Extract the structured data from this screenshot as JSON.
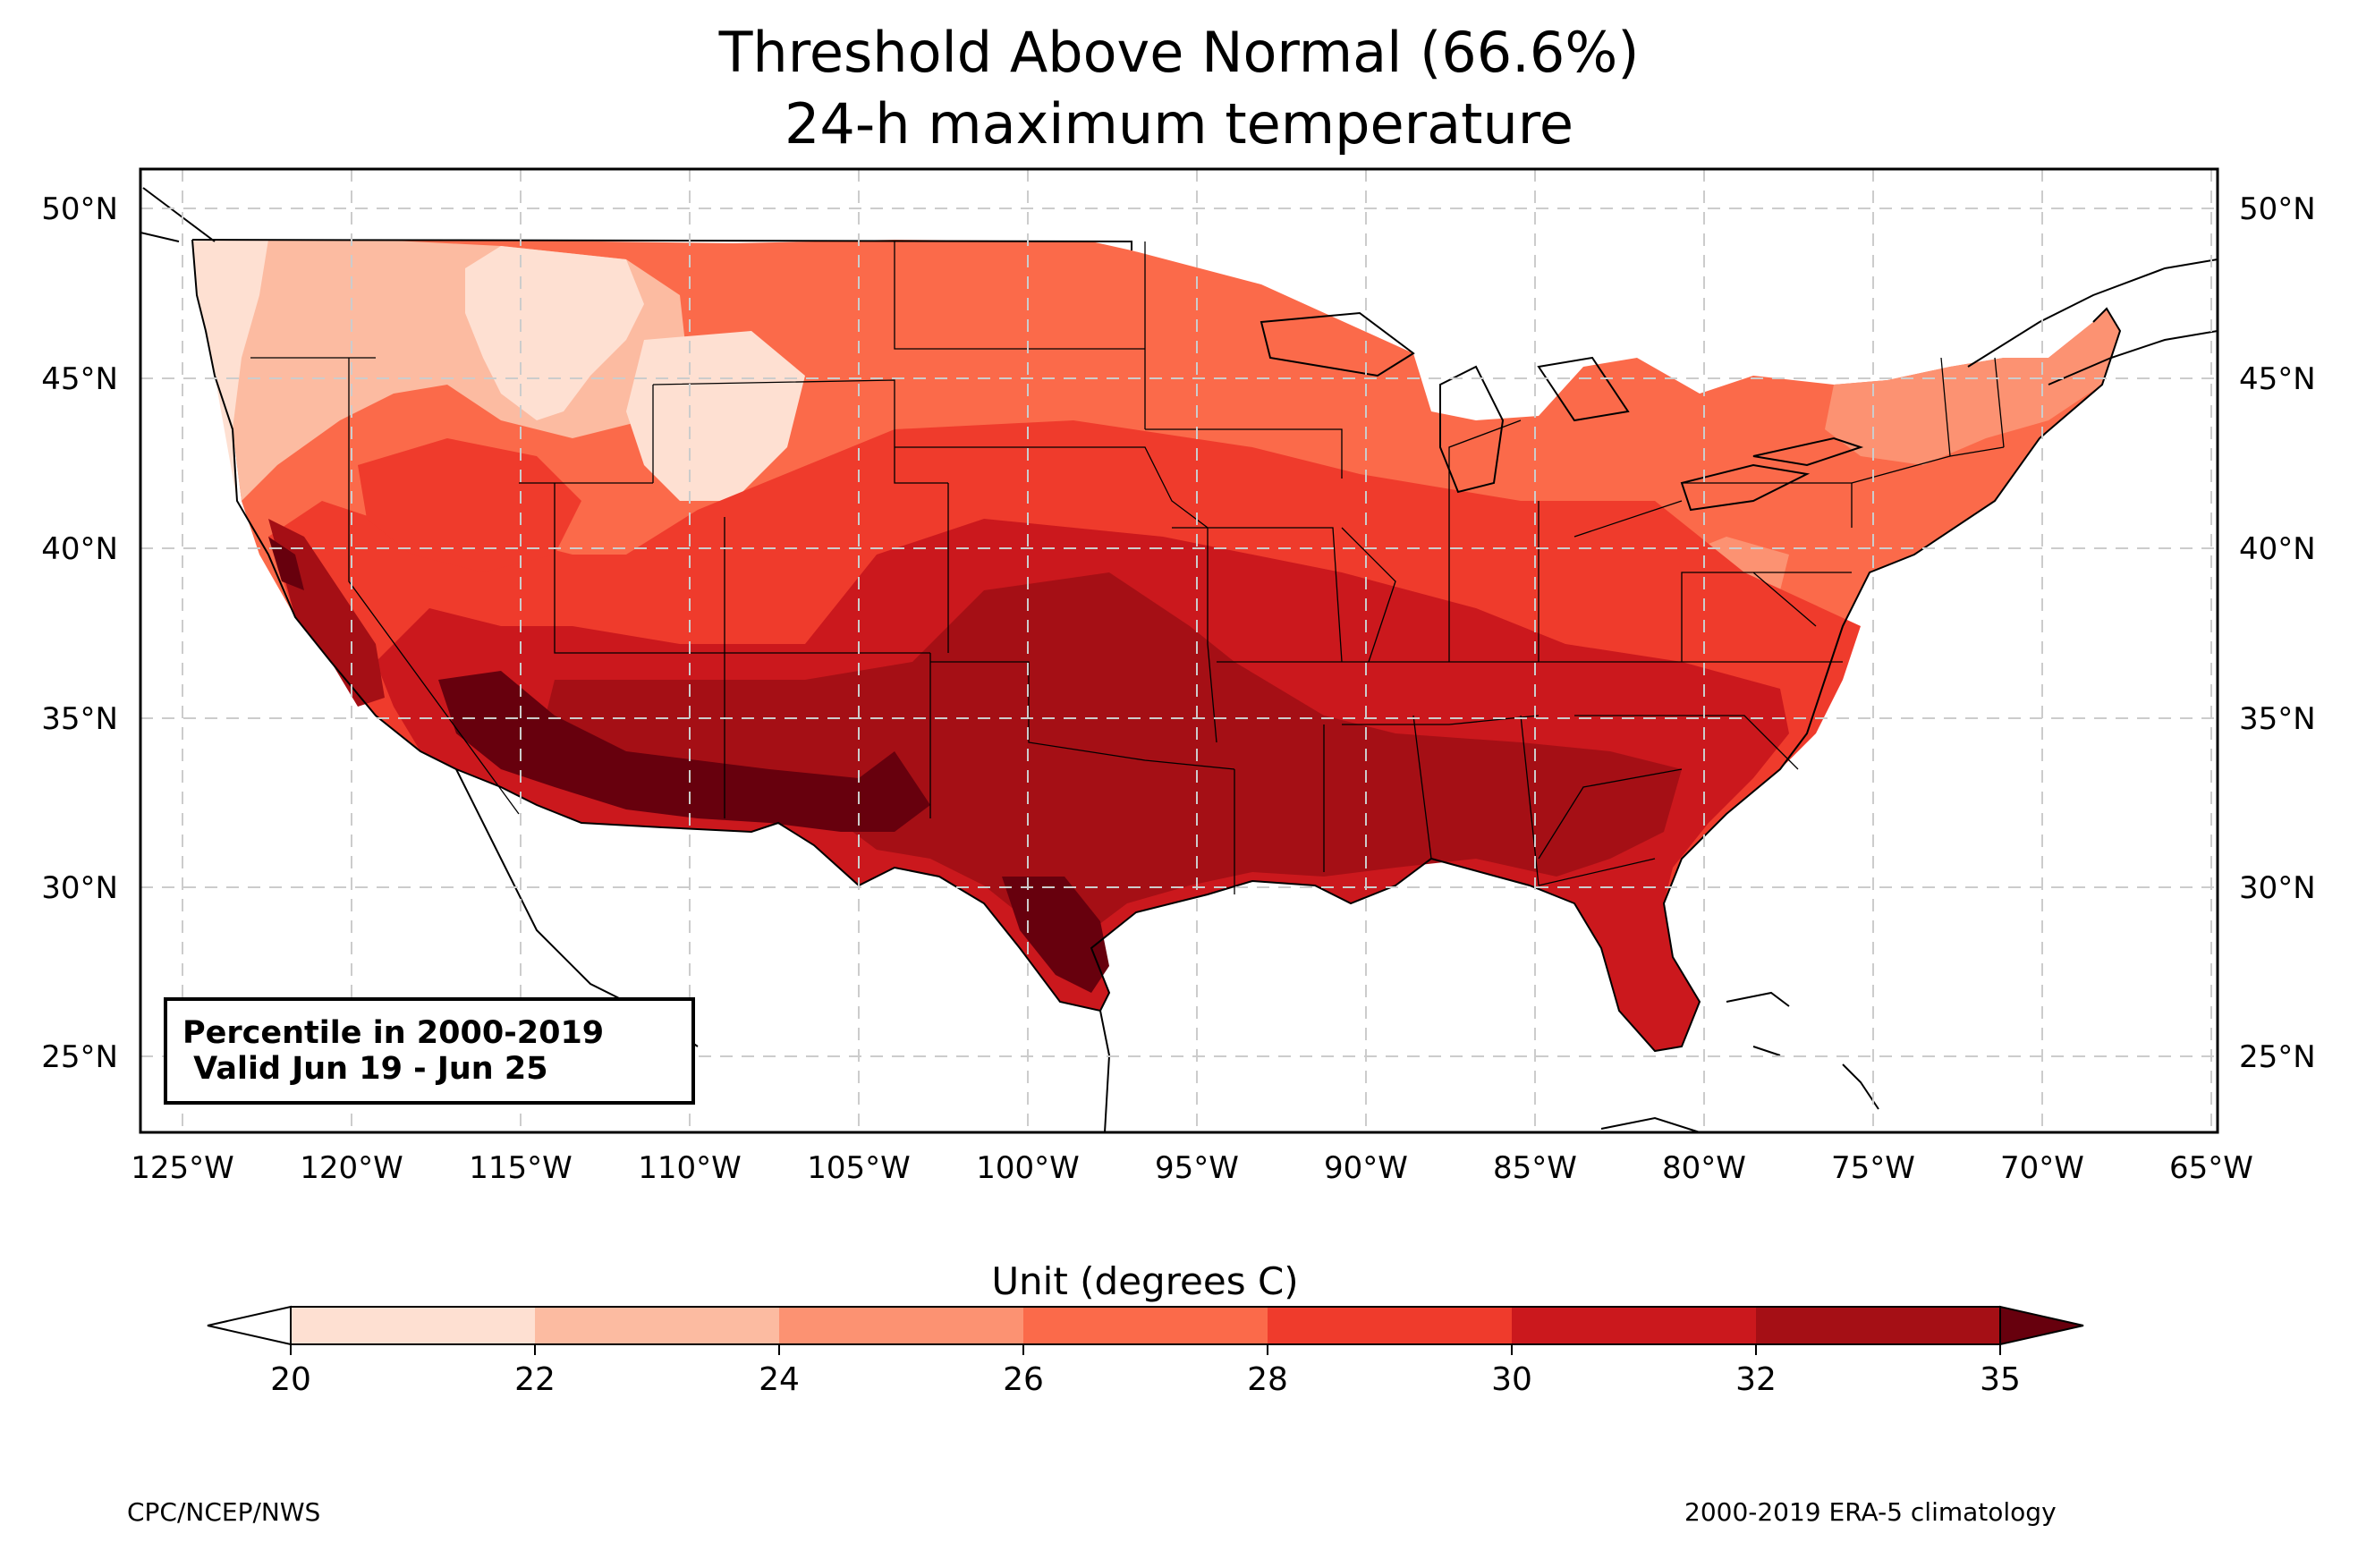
{
  "title": {
    "line1": "Threshold Above Normal (66.6%)",
    "line2": "24-h maximum temperature"
  },
  "info_box": {
    "line1": "Percentile in 2000-2019",
    "line2": " Valid Jun 19 - Jun 25"
  },
  "map": {
    "region": "Contiguous United States",
    "lat_range": [
      22.8,
      51.3
    ],
    "lon_range": [
      -126.2,
      -64.9
    ],
    "lat_ticks": [
      "50°N",
      "45°N",
      "40°N",
      "35°N",
      "30°N",
      "25°N"
    ],
    "lon_ticks": [
      "125°W",
      "120°W",
      "115°W",
      "110°W",
      "105°W",
      "100°W",
      "95°W",
      "90°W",
      "85°W",
      "80°W",
      "75°W",
      "70°W",
      "65°W"
    ],
    "gridlines": true,
    "gridline_style": "dashed light gray"
  },
  "colorbar": {
    "title": "Unit (degrees C)",
    "ticks": [
      "20",
      "22",
      "24",
      "26",
      "28",
      "30",
      "32",
      "35"
    ],
    "levels": [
      20,
      22,
      24,
      26,
      28,
      30,
      32,
      35
    ],
    "colors": [
      "#fee0d2",
      "#fcbba1",
      "#fc9272",
      "#fb6a4a",
      "#ef3b2c",
      "#cb181d",
      "#a50f15"
    ],
    "under_color": "#ffffff",
    "over_color": "#67000d",
    "extend": "both"
  },
  "footer": {
    "left": "CPC/NCEP/NWS",
    "right": "2000-2019 ERA-5 climatology"
  }
}
